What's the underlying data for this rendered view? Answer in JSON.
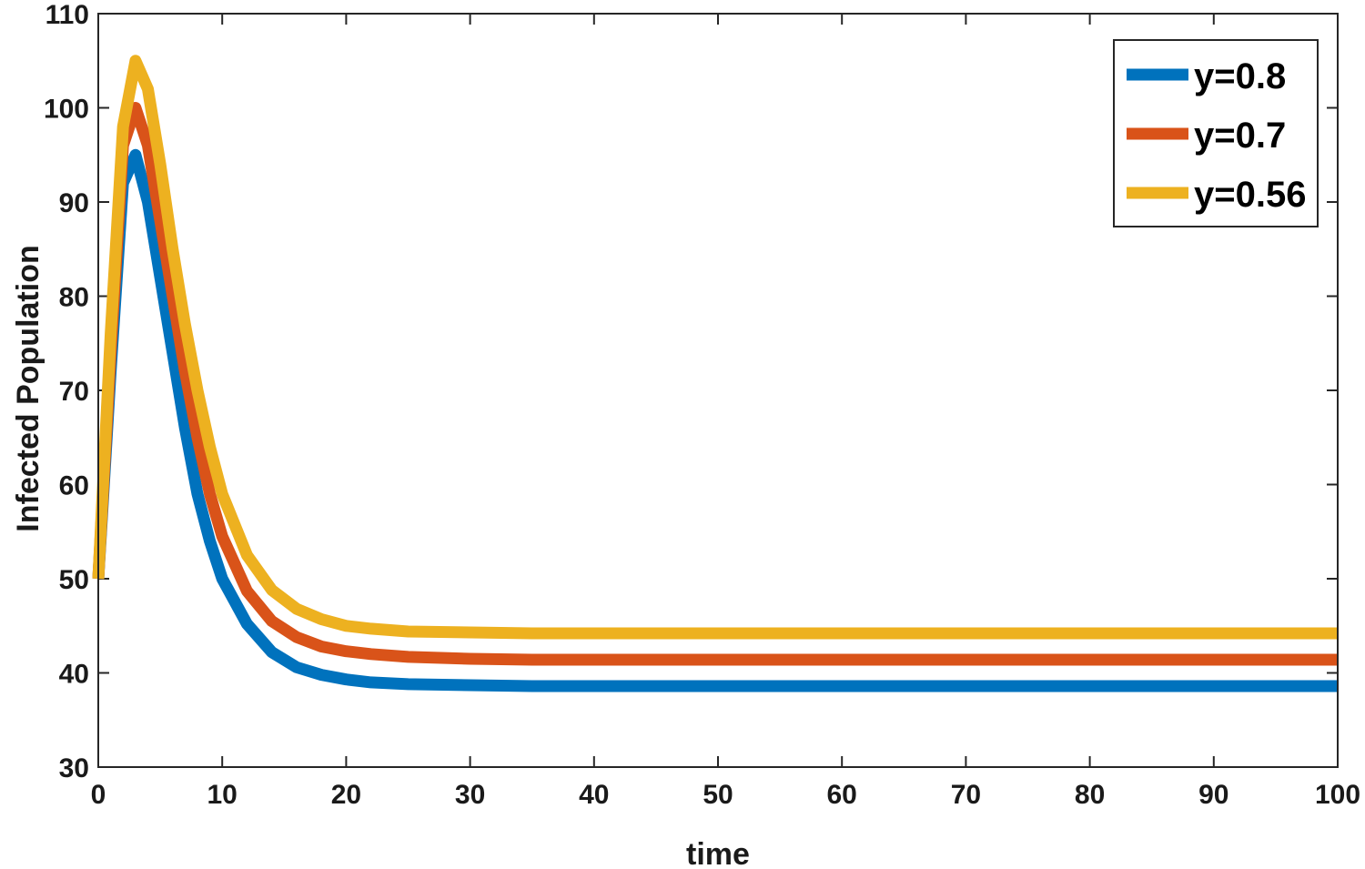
{
  "chart_data": {
    "type": "line",
    "title": "",
    "xlabel": "time",
    "ylabel": "Infected Population",
    "xlim": [
      0,
      100
    ],
    "ylim": [
      30,
      110
    ],
    "xticks": [
      0,
      10,
      20,
      30,
      40,
      50,
      60,
      70,
      80,
      90,
      100
    ],
    "yticks": [
      30,
      40,
      50,
      60,
      70,
      80,
      90,
      100,
      110
    ],
    "grid": false,
    "legend_position": "top-right",
    "x": [
      0,
      1,
      2,
      3,
      4,
      5,
      6,
      7,
      8,
      9,
      10,
      12,
      14,
      16,
      18,
      20,
      22,
      25,
      30,
      35,
      40,
      50,
      60,
      70,
      80,
      90,
      100
    ],
    "series": [
      {
        "name": "y=0.8",
        "color": "#0072BD",
        "values": [
          50,
          72,
          92,
          95,
          90,
          82,
          74,
          66,
          59,
          54,
          50,
          45.2,
          42.2,
          40.6,
          39.8,
          39.3,
          39.0,
          38.8,
          38.7,
          38.6,
          38.6,
          38.6,
          38.6,
          38.6,
          38.6,
          38.6,
          38.6
        ]
      },
      {
        "name": "y=0.7",
        "color": "#D95319",
        "values": [
          50,
          74,
          96,
          100,
          96,
          88,
          80,
          72,
          65,
          59,
          54.5,
          48.7,
          45.5,
          43.8,
          42.8,
          42.3,
          42.0,
          41.7,
          41.5,
          41.4,
          41.4,
          41.4,
          41.4,
          41.4,
          41.4,
          41.4,
          41.4
        ]
      },
      {
        "name": "y=0.56",
        "color": "#EDB120",
        "values": [
          50,
          76,
          98,
          105,
          102,
          94,
          85,
          77,
          70,
          64,
          59,
          52.5,
          48.8,
          46.8,
          45.7,
          45.0,
          44.7,
          44.4,
          44.3,
          44.2,
          44.2,
          44.2,
          44.2,
          44.2,
          44.2,
          44.2,
          44.2
        ]
      }
    ]
  }
}
